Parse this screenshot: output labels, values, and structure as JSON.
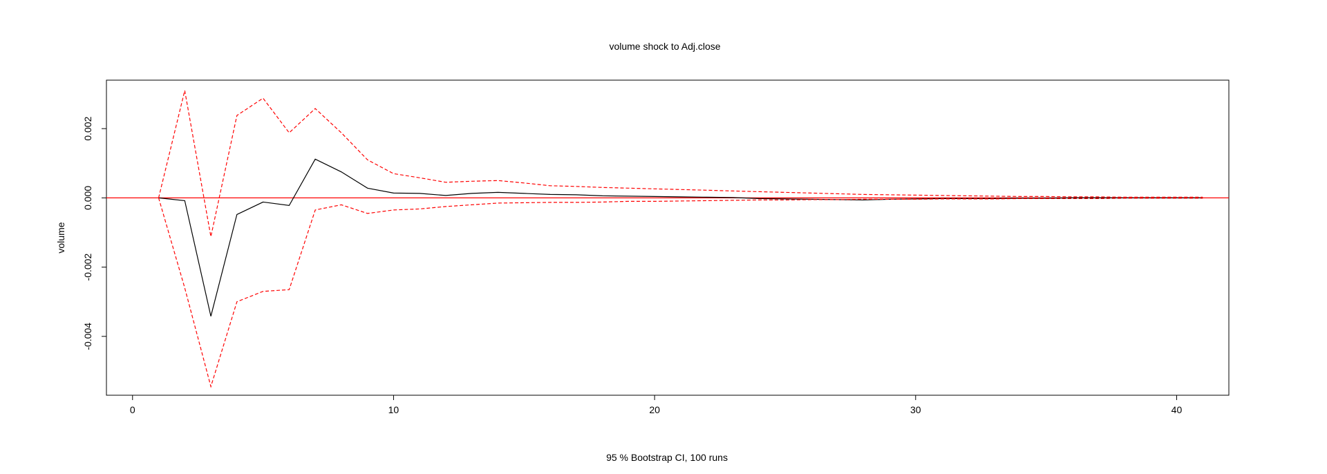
{
  "chart_data": {
    "type": "line",
    "title": "volume shock to Adj.close",
    "xlabel": "95 % Bootstrap CI,  100 runs",
    "ylabel": "volume",
    "xlim": [
      -1,
      42
    ],
    "ylim": [
      -0.0057,
      0.0034
    ],
    "x_ticks": [
      0,
      10,
      20,
      30,
      40
    ],
    "x_tick_labels": [
      "0",
      "10",
      "20",
      "30",
      "40"
    ],
    "y_ticks": [
      -0.004,
      -0.002,
      0.0,
      0.002
    ],
    "y_tick_labels": [
      "-0.004",
      "-0.002",
      "0.000",
      "0.002"
    ],
    "grid": false,
    "zero_line_color": "#ff0000",
    "series": [
      {
        "role": "irf",
        "color": "#000000",
        "dash": "solid",
        "x": [
          1,
          2,
          3,
          4,
          5,
          6,
          7,
          8,
          9,
          10,
          11,
          12,
          13,
          14,
          15,
          16,
          17,
          18,
          19,
          20,
          21,
          22,
          23,
          24,
          25,
          26,
          27,
          28,
          29,
          30,
          31,
          32,
          33,
          34,
          35,
          36,
          37,
          38,
          39,
          40,
          41
        ],
        "values": [
          0.0,
          -8e-05,
          -0.00342,
          -0.00048,
          -0.00012,
          -0.00022,
          0.00112,
          0.00075,
          0.00028,
          0.00014,
          0.00013,
          7e-05,
          0.00013,
          0.00016,
          0.00013,
          0.0001,
          9e-05,
          6e-05,
          5e-05,
          4e-05,
          3e-05,
          2e-05,
          1e-05,
          -2e-05,
          -3e-05,
          -4e-05,
          -5e-05,
          -6e-05,
          -4e-05,
          -3e-05,
          -2e-05,
          -2e-05,
          -2e-05,
          -1e-05,
          -1e-05,
          0.0,
          0.0,
          0.0,
          0.0,
          0.0,
          0.0
        ]
      },
      {
        "role": "upper",
        "color": "#ff0000",
        "dash": "dashed",
        "x": [
          1,
          2,
          3,
          4,
          5,
          6,
          7,
          8,
          9,
          10,
          11,
          12,
          13,
          14,
          15,
          16,
          17,
          18,
          19,
          20,
          21,
          22,
          23,
          24,
          25,
          26,
          27,
          28,
          29,
          30,
          31,
          32,
          33,
          34,
          35,
          36,
          37,
          38,
          39,
          40,
          41
        ],
        "values": [
          0.0,
          0.0031,
          -0.00112,
          0.00238,
          0.00288,
          0.00188,
          0.00258,
          0.00188,
          0.0011,
          0.0007,
          0.00058,
          0.00045,
          0.00048,
          0.0005,
          0.00043,
          0.00035,
          0.00033,
          0.0003,
          0.00028,
          0.00026,
          0.00024,
          0.00022,
          0.0002,
          0.00018,
          0.00016,
          0.00014,
          0.00012,
          0.0001,
          9e-05,
          8e-05,
          7e-05,
          6e-05,
          5e-05,
          4e-05,
          4e-05,
          3e-05,
          3e-05,
          2e-05,
          2e-05,
          2e-05,
          2e-05
        ]
      },
      {
        "role": "lower",
        "color": "#ff0000",
        "dash": "dashed",
        "x": [
          1,
          2,
          3,
          4,
          5,
          6,
          7,
          8,
          9,
          10,
          11,
          12,
          13,
          14,
          15,
          16,
          17,
          18,
          19,
          20,
          21,
          22,
          23,
          24,
          25,
          26,
          27,
          28,
          29,
          30,
          31,
          32,
          33,
          34,
          35,
          36,
          37,
          38,
          39,
          40,
          41
        ],
        "values": [
          0.0,
          -0.0026,
          -0.00545,
          -0.003,
          -0.0027,
          -0.00265,
          -0.00035,
          -0.0002,
          -0.00045,
          -0.00035,
          -0.00032,
          -0.00025,
          -0.0002,
          -0.00015,
          -0.00014,
          -0.00013,
          -0.00013,
          -0.00012,
          -0.0001,
          -0.0001,
          -9e-05,
          -8e-05,
          -7e-05,
          -6e-05,
          -6e-05,
          -5e-05,
          -5e-05,
          -4e-05,
          -4e-05,
          -4e-05,
          -3e-05,
          -3e-05,
          -3e-05,
          -2e-05,
          -2e-05,
          -2e-05,
          -2e-05,
          -1e-05,
          -1e-05,
          -1e-05,
          -1e-05
        ]
      }
    ]
  }
}
